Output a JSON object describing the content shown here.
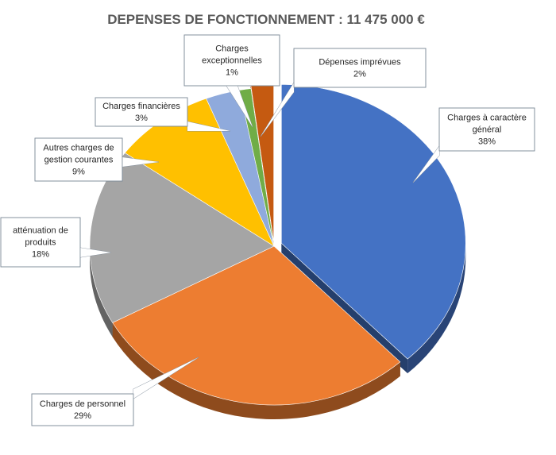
{
  "chart_data": {
    "type": "pie",
    "title": "DEPENSES DE FONCTIONNEMENT  : 11 475 000 €",
    "style": "3d-exploded",
    "slices": [
      {
        "name": "Charges à  caractère général",
        "percent_label": "38%",
        "value": 38,
        "color": "#4472C4"
      },
      {
        "name": "Charges de personnel",
        "percent_label": "29%",
        "value": 29,
        "color": "#ED7D31"
      },
      {
        "name": "atténuation de produits",
        "percent_label": "18%",
        "value": 18,
        "color": "#A5A5A5"
      },
      {
        "name": "Autres charges de gestion courantes",
        "percent_label": "9%",
        "value": 9,
        "color": "#FFC000"
      },
      {
        "name": "Charges financières",
        "percent_label": "3%",
        "value": 3,
        "color": "#8FAADC"
      },
      {
        "name": "Charges exceptionnelles",
        "percent_label": "1%",
        "value": 1,
        "color": "#70AD47"
      },
      {
        "name": "Dépenses imprévues",
        "percent_label": "2%",
        "value": 2,
        "color": "#C55A11"
      }
    ]
  }
}
